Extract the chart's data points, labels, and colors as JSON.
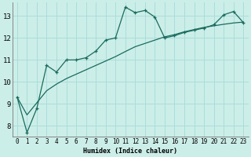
{
  "xlabel": "Humidex (Indice chaleur)",
  "background_color": "#cceee8",
  "line_color": "#1a6b5e",
  "grid_color": "#aaddda",
  "xlim": [
    -0.5,
    23.5
  ],
  "ylim": [
    7.5,
    13.6
  ],
  "xticks": [
    0,
    1,
    2,
    3,
    4,
    5,
    6,
    7,
    8,
    9,
    10,
    11,
    12,
    13,
    14,
    15,
    16,
    17,
    18,
    19,
    20,
    21,
    22,
    23
  ],
  "yticks": [
    8,
    9,
    10,
    11,
    12,
    13
  ],
  "line1_y": [
    9.3,
    7.7,
    8.8,
    10.75,
    10.45,
    11.0,
    11.0,
    11.1,
    11.4,
    11.9,
    12.0,
    13.4,
    13.15,
    13.25,
    12.95,
    12.0,
    12.1,
    12.25,
    12.35,
    12.45,
    12.6,
    13.05,
    13.2,
    12.7
  ],
  "smooth_y": [
    9.3,
    8.5,
    9.05,
    9.6,
    9.9,
    10.15,
    10.35,
    10.55,
    10.75,
    10.95,
    11.15,
    11.38,
    11.6,
    11.75,
    11.9,
    12.05,
    12.15,
    12.28,
    12.38,
    12.48,
    12.55,
    12.62,
    12.68,
    12.72
  ]
}
